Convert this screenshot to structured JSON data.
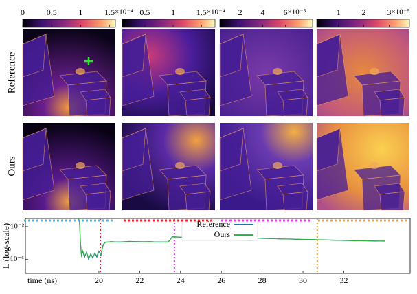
{
  "row_labels": [
    "Reference",
    "Ours"
  ],
  "columns": [
    {
      "color": "#3fb6e8",
      "colorbar": {
        "lim": [
          0,
          1.6
        ],
        "ticks": [
          0,
          0.5,
          1,
          1.5
        ],
        "multiplier": "×10⁻⁴"
      }
    },
    {
      "color": "#e8232a",
      "colorbar": {
        "lim": [
          0.1,
          1.74
        ],
        "ticks": [
          0.5,
          1,
          1.5
        ],
        "multiplier": "×10⁻⁴"
      }
    },
    {
      "color": "#e23de0",
      "colorbar": {
        "lim": [
          0.2,
          8.4
        ],
        "ticks": [
          2,
          4,
          6
        ],
        "multiplier": "×10⁻⁵"
      }
    },
    {
      "color": "#f0a33a",
      "colorbar": {
        "lim": [
          0.14,
          3.8
        ],
        "ticks": [
          1,
          2,
          3
        ],
        "multiplier": "×10⁻⁵"
      }
    }
  ],
  "chart_data": {
    "type": "line",
    "x_label": "time (ns)",
    "y_label": "L (log-scale)",
    "xlim": [
      16.4,
      35.25
    ],
    "xticks": [
      20,
      22,
      24,
      26,
      28,
      30,
      32
    ],
    "ylim": [
      2e-08,
      0.1
    ],
    "y_scale": "log",
    "yticks": [
      {
        "value": 0.01,
        "label": "10⁻²"
      },
      {
        "value": 1e-06,
        "label": "10⁻⁶"
      }
    ],
    "legend": "upper center",
    "time_markers": [
      {
        "value": 20.07,
        "color": "#e8232a"
      },
      {
        "value": 23.7,
        "color": "#e23de0"
      },
      {
        "value": 30.7,
        "color": "#f0a33a"
      }
    ],
    "x": [
      19.0,
      19.05,
      19.1,
      19.15,
      19.2,
      19.3,
      19.4,
      19.5,
      19.6,
      19.7,
      19.8,
      19.9,
      20.0,
      20.1,
      20.2,
      20.3,
      20.6,
      21.0,
      21.5,
      22.0,
      22.5,
      23.0,
      23.4,
      23.6,
      24.0,
      24.5,
      25.0,
      25.5,
      26.0,
      26.5,
      27.0,
      27.5,
      27.7,
      28.0,
      28.5,
      29.0,
      29.5,
      30.0,
      30.5,
      31.0,
      31.5,
      32.0,
      32.5,
      33.0,
      33.5,
      34.0
    ],
    "series": [
      {
        "name": "Reference",
        "color": "#1f6fb4",
        "values": [
          0.08,
          0.05,
          0.0001,
          3e-06,
          1e-05,
          2e-06,
          8e-06,
          1e-06,
          5e-06,
          1.5e-06,
          6e-06,
          2e-06,
          1e-05,
          3e-06,
          5e-05,
          0.00012,
          0.00015,
          0.00013,
          0.00016,
          0.00014,
          0.00015,
          0.00013,
          0.00014,
          0.0006,
          0.0005,
          0.00045,
          0.00038,
          0.00035,
          0.0003,
          0.00026,
          0.00024,
          0.00022,
          0.0004,
          0.00038,
          0.00035,
          0.00032,
          0.0003,
          0.00028,
          0.00026,
          0.00024,
          0.00023,
          0.00021,
          0.0002,
          0.00019,
          0.00018,
          0.00017
        ]
      },
      {
        "name": "Ours",
        "color": "#2fb53c",
        "values": [
          0.1,
          0.04,
          8e-05,
          2e-06,
          1.2e-05,
          3e-06,
          6e-06,
          1.5e-06,
          4e-06,
          2e-06,
          5e-06,
          3e-06,
          8e-06,
          4e-06,
          6e-05,
          0.00013,
          0.00014,
          0.00014,
          0.00015,
          0.00015,
          0.00014,
          0.00014,
          0.00013,
          0.00058,
          0.00052,
          0.00044,
          0.0004,
          0.00034,
          0.00031,
          0.00027,
          0.00023,
          0.00023,
          0.00041,
          0.00037,
          0.00036,
          0.00031,
          0.00031,
          0.00027,
          0.00027,
          0.00025,
          0.00022,
          0.00022,
          0.00019,
          0.0002,
          0.00017,
          0.00018
        ]
      }
    ]
  }
}
